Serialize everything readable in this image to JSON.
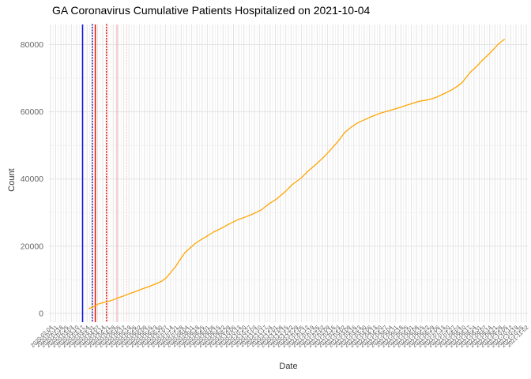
{
  "page": {
    "title": "GA Coronavirus Cumulative Patients Hospitalized on 2021-10-04"
  },
  "chart_data": {
    "type": "line",
    "title": "GA Coronavirus Cumulative Patients Hospitalized on 2021-10-04",
    "xlabel": "Date",
    "ylabel": "Count",
    "legend": "none",
    "grid": "major+minor",
    "background": "#ffffff",
    "major_grid_color": "#e3e3e3",
    "minor_grid_color": "#f0f0f0",
    "line_color": "#ffa500",
    "axis_text_color": "#666666",
    "x_domain": [
      "2020-02-02",
      "2021-11-04"
    ],
    "ylim": [
      -2600,
      86000
    ],
    "y_ticks": [
      0,
      20000,
      40000,
      60000,
      80000
    ],
    "y_minor_ticks": [
      10000,
      30000,
      50000,
      70000
    ],
    "x_tick_labels": [
      "2020-02-04",
      "2020-02-11",
      "2020-02-18",
      "2020-02-25",
      "2020-03-03",
      "2020-03-10",
      "2020-03-17",
      "2020-03-24",
      "2020-03-31",
      "2020-04-07",
      "2020-04-14",
      "2020-04-21",
      "2020-04-28",
      "2020-05-05",
      "2020-05-12",
      "2020-05-19",
      "2020-05-26",
      "2020-06-02",
      "2020-06-09",
      "2020-06-16",
      "2020-06-23",
      "2020-06-30",
      "2020-07-07",
      "2020-07-14",
      "2020-07-21",
      "2020-07-28",
      "2020-08-04",
      "2020-08-11",
      "2020-08-18",
      "2020-08-25",
      "2020-09-01",
      "2020-09-08",
      "2020-09-15",
      "2020-09-22",
      "2020-09-29",
      "2020-10-06",
      "2020-10-13",
      "2020-10-20",
      "2020-10-27",
      "2020-11-03",
      "2020-11-10",
      "2020-11-17",
      "2020-11-24",
      "2020-12-01",
      "2020-12-08",
      "2020-12-15",
      "2020-12-22",
      "2020-12-29",
      "2021-01-05",
      "2021-01-12",
      "2021-01-19",
      "2021-01-26",
      "2021-02-02",
      "2021-02-09",
      "2021-02-16",
      "2021-02-23",
      "2021-03-02",
      "2021-03-09",
      "2021-03-16",
      "2021-03-23",
      "2021-03-30",
      "2021-04-06",
      "2021-04-13",
      "2021-04-20",
      "2021-04-27",
      "2021-05-04",
      "2021-05-11",
      "2021-05-18",
      "2021-05-25",
      "2021-06-01",
      "2021-06-08",
      "2021-06-15",
      "2021-06-22",
      "2021-06-29",
      "2021-07-06",
      "2021-07-13",
      "2021-07-20",
      "2021-07-27",
      "2021-08-03",
      "2021-08-10",
      "2021-08-17",
      "2021-08-24",
      "2021-08-31",
      "2021-09-07",
      "2021-09-14",
      "2021-09-21",
      "2021-09-28",
      "2021-10-05",
      "2021-10-12",
      "2021-10-19",
      "2021-10-26",
      "2021-11-02"
    ],
    "series": [
      {
        "name": "cumulative-patients-hospitalized",
        "color": "#ffa500",
        "points": [
          [
            "2020-03-26",
            1400
          ],
          [
            "2020-04-01",
            1900
          ],
          [
            "2020-04-08",
            2800
          ],
          [
            "2020-04-16",
            3300
          ],
          [
            "2020-04-25",
            3800
          ],
          [
            "2020-05-03",
            4500
          ],
          [
            "2020-05-12",
            5200
          ],
          [
            "2020-05-20",
            5900
          ],
          [
            "2020-05-29",
            6600
          ],
          [
            "2020-06-06",
            7300
          ],
          [
            "2020-06-15",
            8000
          ],
          [
            "2020-06-23",
            8700
          ],
          [
            "2020-07-02",
            9600
          ],
          [
            "2020-07-08",
            10600
          ],
          [
            "2020-07-14",
            12200
          ],
          [
            "2020-07-21",
            14100
          ],
          [
            "2020-07-27",
            16200
          ],
          [
            "2020-08-02",
            18100
          ],
          [
            "2020-08-09",
            19500
          ],
          [
            "2020-08-15",
            20700
          ],
          [
            "2020-08-21",
            21600
          ],
          [
            "2020-08-30",
            22800
          ],
          [
            "2020-09-09",
            24200
          ],
          [
            "2020-09-20",
            25400
          ],
          [
            "2020-09-30",
            26600
          ],
          [
            "2020-10-11",
            27800
          ],
          [
            "2020-10-22",
            28700
          ],
          [
            "2020-11-01",
            29600
          ],
          [
            "2020-11-12",
            30800
          ],
          [
            "2020-11-22",
            32500
          ],
          [
            "2020-12-03",
            34100
          ],
          [
            "2020-12-14",
            36200
          ],
          [
            "2020-12-24",
            38400
          ],
          [
            "2021-01-04",
            40200
          ],
          [
            "2021-01-14",
            42400
          ],
          [
            "2021-01-25",
            44500
          ],
          [
            "2021-02-05",
            46800
          ],
          [
            "2021-02-15",
            49200
          ],
          [
            "2021-02-24",
            51500
          ],
          [
            "2021-03-04",
            53900
          ],
          [
            "2021-03-13",
            55500
          ],
          [
            "2021-03-21",
            56700
          ],
          [
            "2021-03-30",
            57600
          ],
          [
            "2021-04-09",
            58600
          ],
          [
            "2021-04-19",
            59500
          ],
          [
            "2021-04-30",
            60200
          ],
          [
            "2021-05-11",
            60900
          ],
          [
            "2021-05-21",
            61600
          ],
          [
            "2021-06-01",
            62400
          ],
          [
            "2021-06-11",
            63100
          ],
          [
            "2021-06-22",
            63500
          ],
          [
            "2021-07-03",
            64200
          ],
          [
            "2021-07-13",
            65200
          ],
          [
            "2021-07-24",
            66400
          ],
          [
            "2021-08-01",
            67500
          ],
          [
            "2021-08-08",
            68700
          ],
          [
            "2021-08-14",
            70400
          ],
          [
            "2021-08-20",
            72000
          ],
          [
            "2021-08-27",
            73400
          ],
          [
            "2021-09-04",
            75300
          ],
          [
            "2021-09-13",
            77200
          ],
          [
            "2021-09-21",
            79100
          ],
          [
            "2021-09-27",
            80500
          ],
          [
            "2021-10-04",
            81600
          ]
        ]
      }
    ],
    "vlines": [
      {
        "date": "2020-03-18",
        "color": "#1010e0",
        "style": "solid"
      },
      {
        "date": "2020-03-31",
        "color": "#18189e",
        "style": "dotted"
      },
      {
        "date": "2020-04-04",
        "color": "#ee1100",
        "style": "solid"
      },
      {
        "date": "2020-04-19",
        "color": "#ee1100",
        "style": "dotted"
      },
      {
        "date": "2020-05-03",
        "color": "#f9b8c4",
        "style": "solid"
      },
      {
        "date": "2020-05-16",
        "color": "#fbd7de",
        "style": "dotted"
      }
    ]
  }
}
